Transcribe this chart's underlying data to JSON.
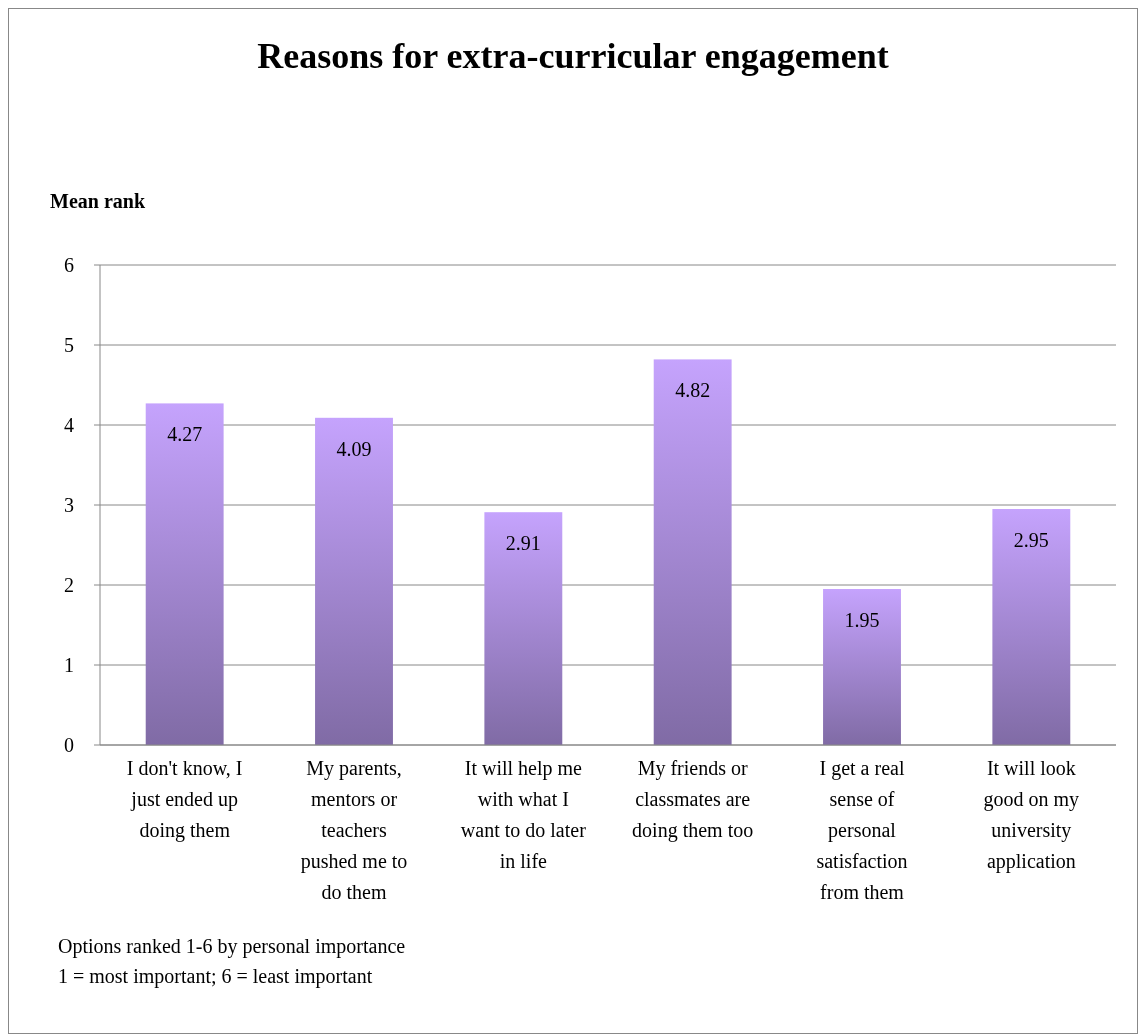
{
  "chart_data": {
    "type": "bar",
    "title": "Reasons for extra-curricular engagement",
    "ylabel": "Mean rank",
    "categories": [
      "I don't know, I just ended up doing them",
      "My parents, mentors or teachers pushed me to do them",
      "It will help me with what I want to do later in life",
      "My friends or classmates are doing them too",
      "I get a real sense of personal satisfaction from them",
      "It will look good on my university application"
    ],
    "values": [
      4.27,
      4.09,
      2.91,
      4.82,
      1.95,
      2.95
    ],
    "color": "#9f84cc",
    "ylim": [
      0,
      6
    ],
    "yticks": [
      0,
      1,
      2,
      3,
      4,
      5,
      6
    ],
    "grid": "y",
    "data_labels": true,
    "annotations": [
      "Options ranked 1-6 by personal importance",
      "1 = most important; 6 = least important"
    ]
  }
}
